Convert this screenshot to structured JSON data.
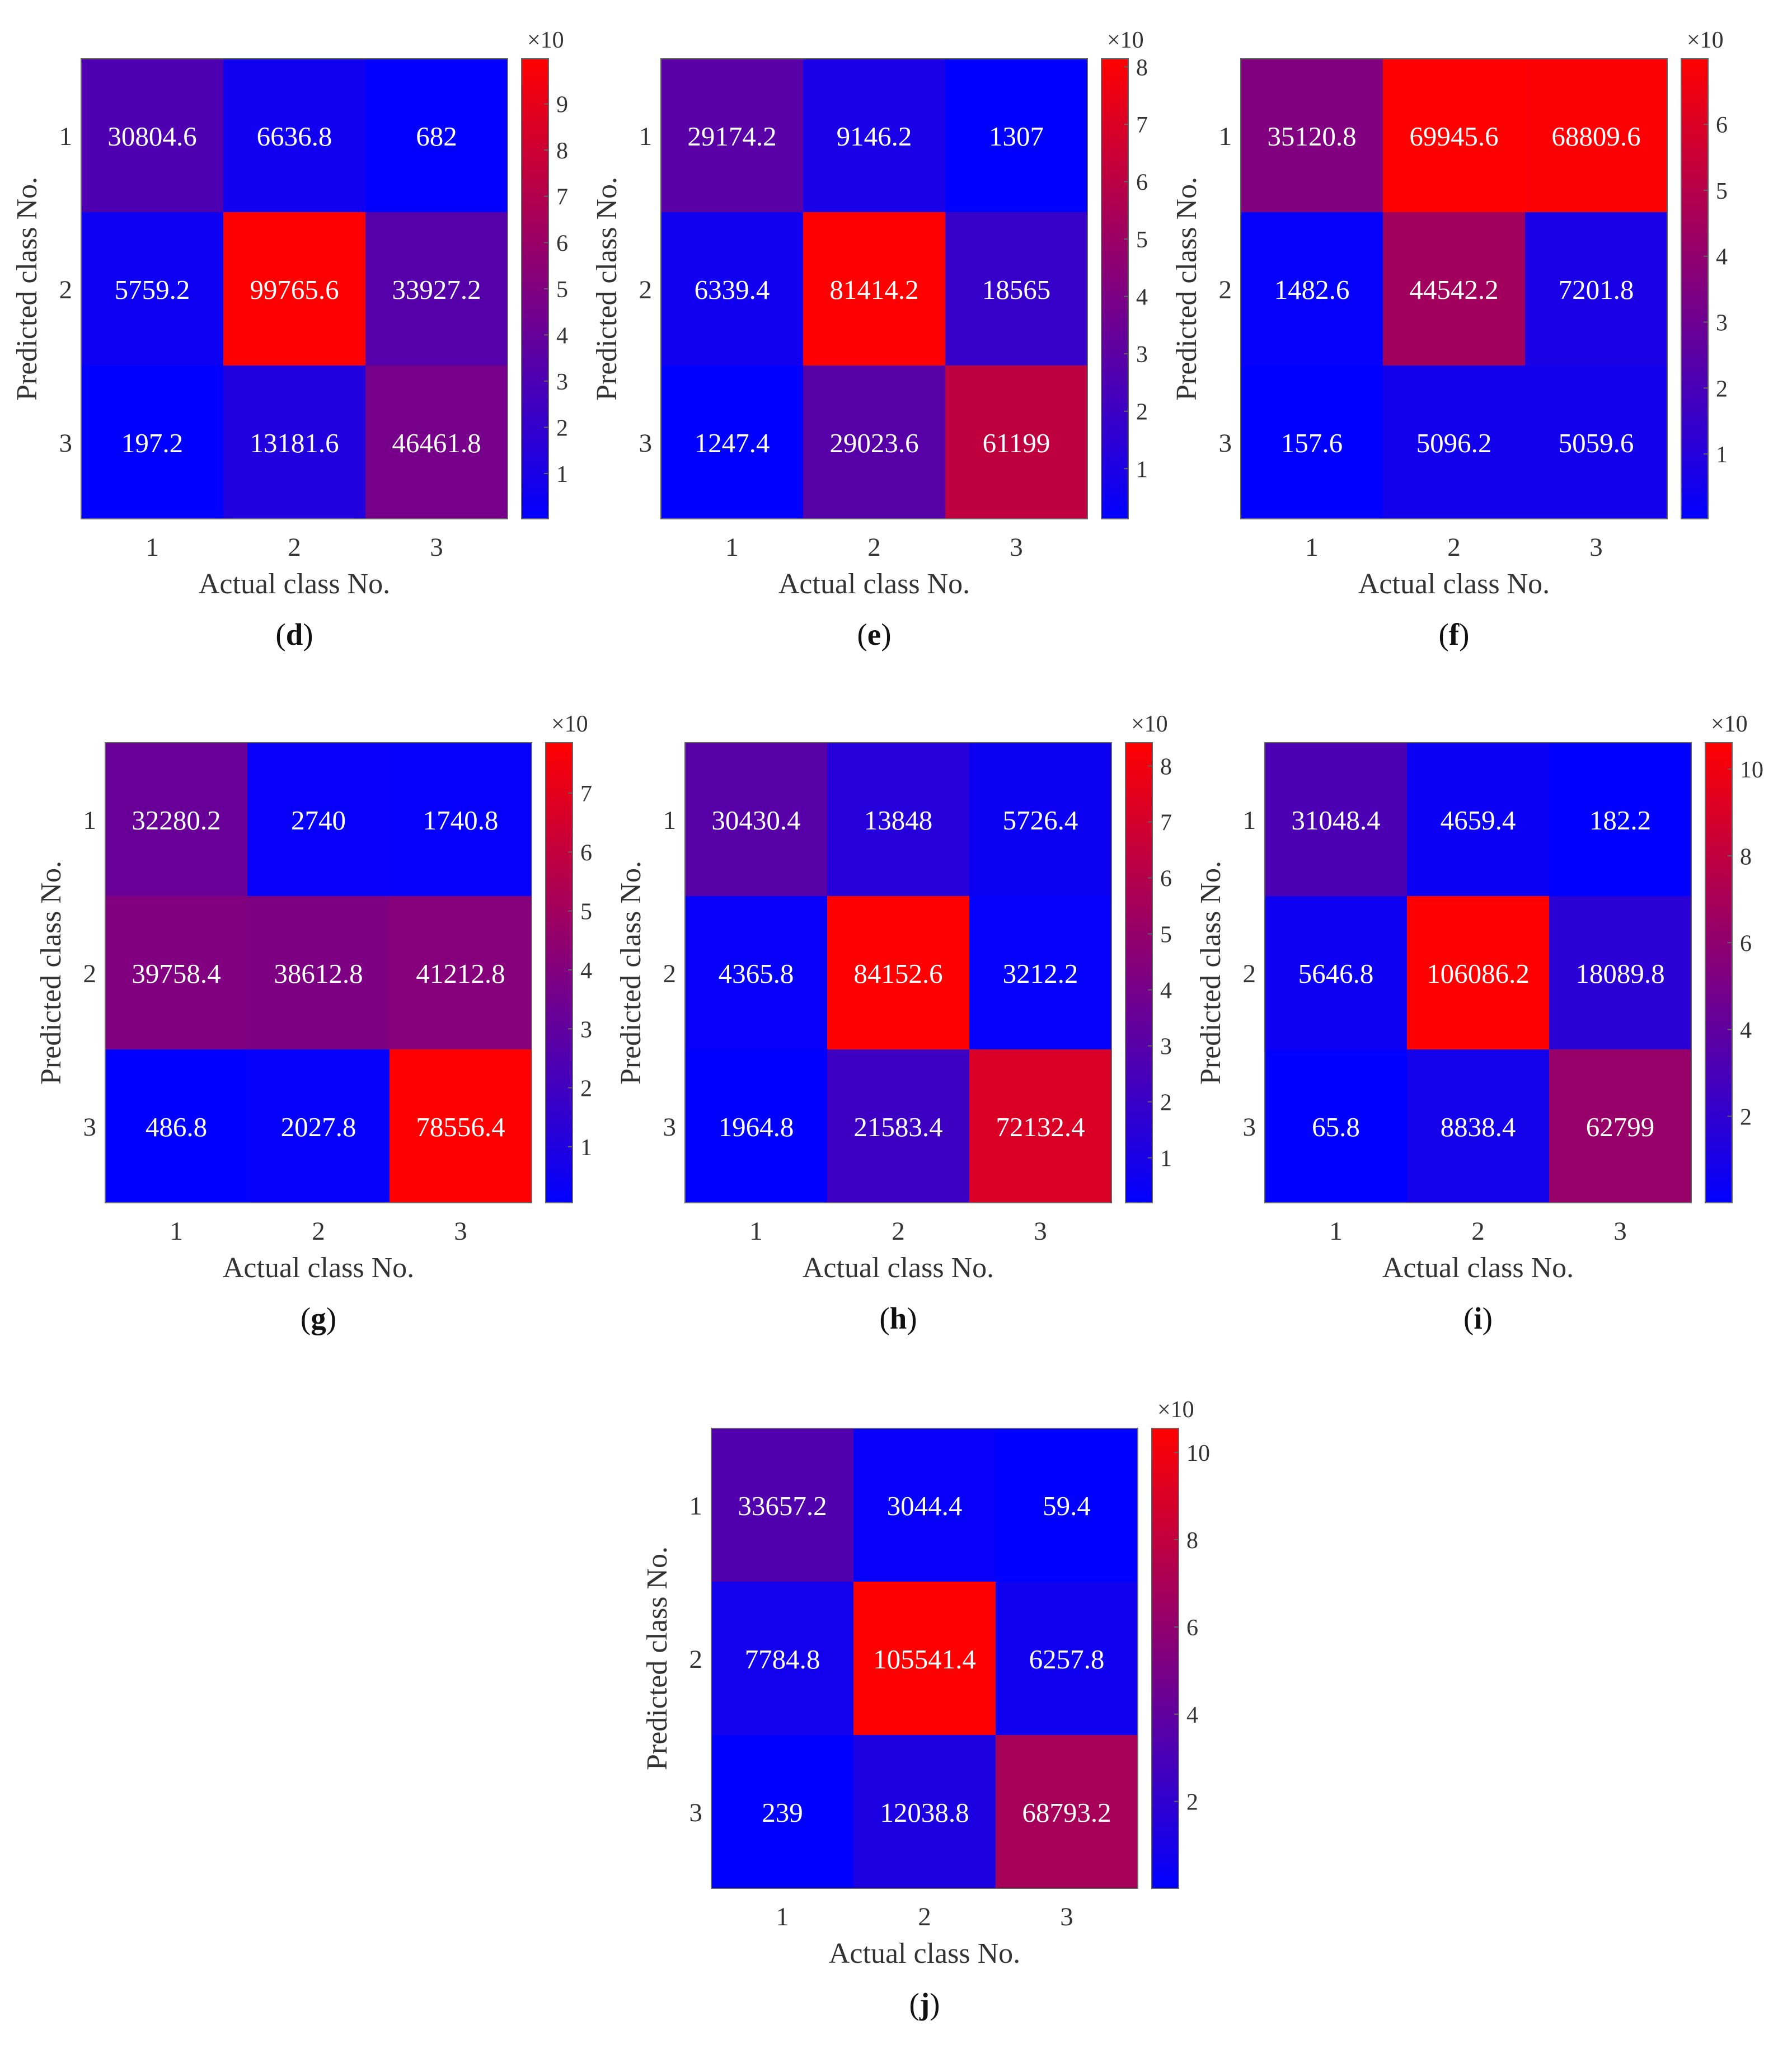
{
  "figure": {
    "colors": {
      "low": "#0000ff",
      "high": "#ff0000",
      "cell_text": "#ffffff",
      "axis_text": "#333333",
      "frame": "#666666"
    },
    "cbar_exponent_text": "×10"
  },
  "chart_data": [
    {
      "panel": "d",
      "type": "heatmap",
      "caption": "(d)",
      "caption_letter": "d",
      "xlabel": "Actual class No.",
      "ylabel": "Predicted class No.",
      "x_ticks": [
        "1",
        "2",
        "3"
      ],
      "y_ticks": [
        "1",
        "2",
        "3"
      ],
      "values": [
        [
          30804.6,
          6636.8,
          682
        ],
        [
          5759.2,
          99765.6,
          33927.2
        ],
        [
          197.2,
          13181.6,
          46461.8
        ]
      ],
      "cbar_ticks": [
        1,
        2,
        3,
        4,
        5,
        6,
        7,
        8,
        9
      ],
      "cbar_exponent": "×10"
    },
    {
      "panel": "e",
      "type": "heatmap",
      "caption": "(e)",
      "caption_letter": "e",
      "xlabel": "Actual class No.",
      "ylabel": "Predicted class No.",
      "x_ticks": [
        "1",
        "2",
        "3"
      ],
      "y_ticks": [
        "1",
        "2",
        "3"
      ],
      "values": [
        [
          29174.2,
          9146.2,
          1307
        ],
        [
          6339.4,
          81414.2,
          18565
        ],
        [
          1247.4,
          29023.6,
          61199
        ]
      ],
      "cbar_ticks": [
        1,
        2,
        3,
        4,
        5,
        6,
        7,
        8
      ],
      "cbar_exponent": "×10"
    },
    {
      "panel": "f",
      "type": "heatmap",
      "caption": "(f)",
      "caption_letter": "f",
      "xlabel": "Actual class No.",
      "ylabel": "Predicted class No.",
      "x_ticks": [
        "1",
        "2",
        "3"
      ],
      "y_ticks": [
        "1",
        "2",
        "3"
      ],
      "values": [
        [
          35120.8,
          69945.6,
          68809.6
        ],
        [
          1482.6,
          44542.2,
          7201.8
        ],
        [
          157.6,
          5096.2,
          5059.6
        ]
      ],
      "cbar_ticks": [
        1,
        2,
        3,
        4,
        5,
        6
      ],
      "cbar_exponent": "×10"
    },
    {
      "panel": "g",
      "type": "heatmap",
      "caption": "(g)",
      "caption_letter": "g",
      "xlabel": "Actual class No.",
      "ylabel": "Predicted class No.",
      "x_ticks": [
        "1",
        "2",
        "3"
      ],
      "y_ticks": [
        "1",
        "2",
        "3"
      ],
      "values": [
        [
          32280.2,
          2740,
          1740.8
        ],
        [
          39758.4,
          38612.8,
          41212.8
        ],
        [
          486.8,
          2027.8,
          78556.4
        ]
      ],
      "cbar_ticks": [
        1,
        2,
        3,
        4,
        5,
        6,
        7
      ],
      "cbar_exponent": "×10"
    },
    {
      "panel": "h",
      "type": "heatmap",
      "caption": "(h)",
      "caption_letter": "h",
      "xlabel": "Actual class No.",
      "ylabel": "Predicted class No.",
      "x_ticks": [
        "1",
        "2",
        "3"
      ],
      "y_ticks": [
        "1",
        "2",
        "3"
      ],
      "values": [
        [
          30430.4,
          13848,
          5726.4
        ],
        [
          4365.8,
          84152.6,
          3212.2
        ],
        [
          1964.8,
          21583.4,
          72132.4
        ]
      ],
      "cbar_ticks": [
        1,
        2,
        3,
        4,
        5,
        6,
        7,
        8
      ],
      "cbar_exponent": "×10"
    },
    {
      "panel": "i",
      "type": "heatmap",
      "caption": "(i)",
      "caption_letter": "i",
      "xlabel": "Actual class No.",
      "ylabel": "Predicted class No.",
      "x_ticks": [
        "1",
        "2",
        "3"
      ],
      "y_ticks": [
        "1",
        "2",
        "3"
      ],
      "values": [
        [
          31048.4,
          4659.4,
          182.2
        ],
        [
          5646.8,
          106086.2,
          18089.8
        ],
        [
          65.8,
          8838.4,
          62799
        ]
      ],
      "cbar_ticks": [
        2,
        4,
        6,
        8,
        10
      ],
      "cbar_exponent": "×10"
    },
    {
      "panel": "j",
      "type": "heatmap",
      "caption": "(j)",
      "caption_letter": "j",
      "xlabel": "Actual class No.",
      "ylabel": "Predicted class No.",
      "x_ticks": [
        "1",
        "2",
        "3"
      ],
      "y_ticks": [
        "1",
        "2",
        "3"
      ],
      "values": [
        [
          33657.2,
          3044.4,
          59.4
        ],
        [
          7784.8,
          105541.4,
          6257.8
        ],
        [
          239,
          12038.8,
          68793.2
        ]
      ],
      "cbar_ticks": [
        2,
        4,
        6,
        8,
        10
      ],
      "cbar_exponent": "×10"
    }
  ]
}
